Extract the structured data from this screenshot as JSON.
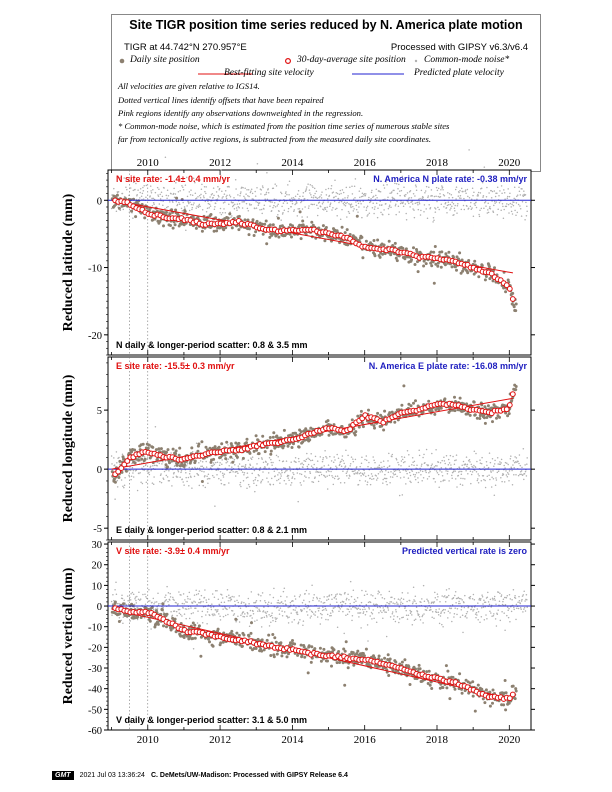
{
  "header": {
    "title": "Site TIGR position time series reduced by N. America plate motion",
    "site_location": "TIGR at 44.742°N 270.957°E",
    "processing": "Processed with GIPSY v6.3/v6.4",
    "legend": {
      "daily": "Daily site position",
      "avg30": "30-day-average site position",
      "cmn": "Common-mode noise*",
      "bestfit": "Best-fitting site velocity",
      "predicted": "Predicted plate velocity"
    },
    "notes": [
      "All velocities are given relative to IGS14.",
      "Dotted vertical lines identify offsets that have been repaired",
      "Pink regions identify any observations downweighted in the regression.",
      "* Common-mode noise, which is estimated from the position time series of numerous stable sites",
      "far from tectonically active regions, is subtracted from the measured daily site coordinates."
    ]
  },
  "colors": {
    "daily": "#8c8070",
    "avg30_edge": "#e01010",
    "bestfit": "#e01010",
    "predicted": "#2020d0",
    "cmn": "#b0b0b0",
    "red_text": "#e01010",
    "blue_text": "#2020c0"
  },
  "footer": {
    "logo": "GMT",
    "timestamp": "2021 Jul 03 13:36:24",
    "credit": "C. DeMets/UW-Madison: Processed with GIPSY Release 6.4"
  },
  "x_axis": {
    "ticks": [
      "2010",
      "2012",
      "2014",
      "2016",
      "2018",
      "2020"
    ],
    "xlim": [
      2008.9,
      2020.6
    ],
    "offset_lines": [
      2009.5,
      2010.0
    ]
  },
  "chart_data": [
    {
      "type": "scatter",
      "component": "N",
      "ylabel": "Reduced latitude (mm)",
      "ylim": [
        -23,
        4.5
      ],
      "yticks": [
        "0",
        "-10",
        "-20"
      ],
      "site_rate_label": "N site rate:  -1.4± 0.4 mm/yr",
      "plate_rate_label": "N. America N plate rate:  -0.38 mm/yr",
      "scatter_label": "N daily & longer-period scatter:   0.8 &   3.5 mm",
      "bestfit": {
        "x": [
          2009.0,
          2020.1
        ],
        "y": [
          0.0,
          -10.8
        ]
      },
      "predicted": {
        "x": [
          2008.9,
          2020.6
        ],
        "y": [
          0.0,
          0.0
        ]
      },
      "avg30": {
        "x": [
          2009.1,
          2009.5,
          2010.0,
          2010.5,
          2011.0,
          2011.5,
          2012.0,
          2012.5,
          2013.0,
          2013.5,
          2014.0,
          2014.5,
          2015.0,
          2015.5,
          2016.0,
          2016.5,
          2017.0,
          2017.5,
          2018.0,
          2018.5,
          2019.0,
          2019.5,
          2020.0,
          2020.15
        ],
        "y": [
          0.0,
          -0.5,
          -2.0,
          -2.5,
          -2.8,
          -3.5,
          -3.5,
          -3.2,
          -4.0,
          -4.5,
          -4.5,
          -4.3,
          -5.0,
          -5.5,
          -7.0,
          -7.3,
          -7.6,
          -8.5,
          -8.5,
          -9.2,
          -10.0,
          -11.0,
          -12.8,
          -16.0
        ]
      }
    },
    {
      "type": "scatter",
      "component": "E",
      "ylabel": "Reduced longitude (mm)",
      "ylim": [
        -6,
        9.5
      ],
      "yticks": [
        "5",
        "0",
        "-5"
      ],
      "site_rate_label": "E site rate:  -15.5± 0.3 mm/yr",
      "plate_rate_label": "N. America E plate rate:  -16.08 mm/yr",
      "scatter_label": "E daily & longer-period scatter:   0.8 &   2.1 mm",
      "bestfit": {
        "x": [
          2009.0,
          2020.1
        ],
        "y": [
          0.0,
          6.0
        ]
      },
      "predicted": {
        "x": [
          2008.9,
          2020.6
        ],
        "y": [
          0.0,
          0.0
        ]
      },
      "avg30": {
        "x": [
          2009.1,
          2009.5,
          2010.0,
          2010.5,
          2011.0,
          2011.5,
          2012.0,
          2012.5,
          2013.0,
          2013.5,
          2014.0,
          2014.5,
          2015.0,
          2015.5,
          2016.0,
          2016.5,
          2017.0,
          2017.5,
          2018.0,
          2018.5,
          2019.0,
          2019.5,
          2020.0,
          2020.15
        ],
        "y": [
          -0.5,
          1.0,
          1.5,
          1.0,
          0.8,
          1.2,
          1.5,
          1.6,
          2.0,
          2.2,
          2.5,
          3.0,
          3.5,
          3.2,
          4.5,
          4.0,
          4.8,
          5.0,
          5.5,
          5.5,
          5.0,
          4.8,
          5.2,
          7.0
        ]
      }
    },
    {
      "type": "scatter",
      "component": "V",
      "ylabel": "Reduced vertical (mm)",
      "ylim": [
        -60,
        31
      ],
      "yticks": [
        "30",
        "20",
        "10",
        "0",
        "-10",
        "-20",
        "-30",
        "-40",
        "-50",
        "-60"
      ],
      "site_rate_label": "V site rate:  -3.9± 0.4 mm/yr",
      "plate_rate_label": "Predicted vertical rate is zero",
      "scatter_label": "V daily & longer-period scatter:   3.1 &   5.0 mm",
      "bestfit": {
        "x": [
          2009.0,
          2020.1
        ],
        "y": [
          -1.5,
          -45.0
        ]
      },
      "predicted": {
        "x": [
          2008.9,
          2020.6
        ],
        "y": [
          0.0,
          0.0
        ]
      },
      "avg30": {
        "x": [
          2009.1,
          2009.5,
          2010.0,
          2010.5,
          2011.0,
          2011.5,
          2012.0,
          2012.5,
          2013.0,
          2013.5,
          2014.0,
          2014.5,
          2015.0,
          2015.5,
          2016.0,
          2016.5,
          2017.0,
          2017.5,
          2018.0,
          2018.5,
          2019.0,
          2019.5,
          2020.0,
          2020.15
        ],
        "y": [
          -1.0,
          -3.0,
          -3.0,
          -7.0,
          -12.0,
          -13.0,
          -15.0,
          -16.5,
          -18.0,
          -20.0,
          -21.0,
          -23.0,
          -24.0,
          -25.0,
          -26.0,
          -28.0,
          -30.0,
          -33.0,
          -35.0,
          -37.0,
          -41.0,
          -44.0,
          -45.0,
          -42.0
        ]
      }
    }
  ]
}
